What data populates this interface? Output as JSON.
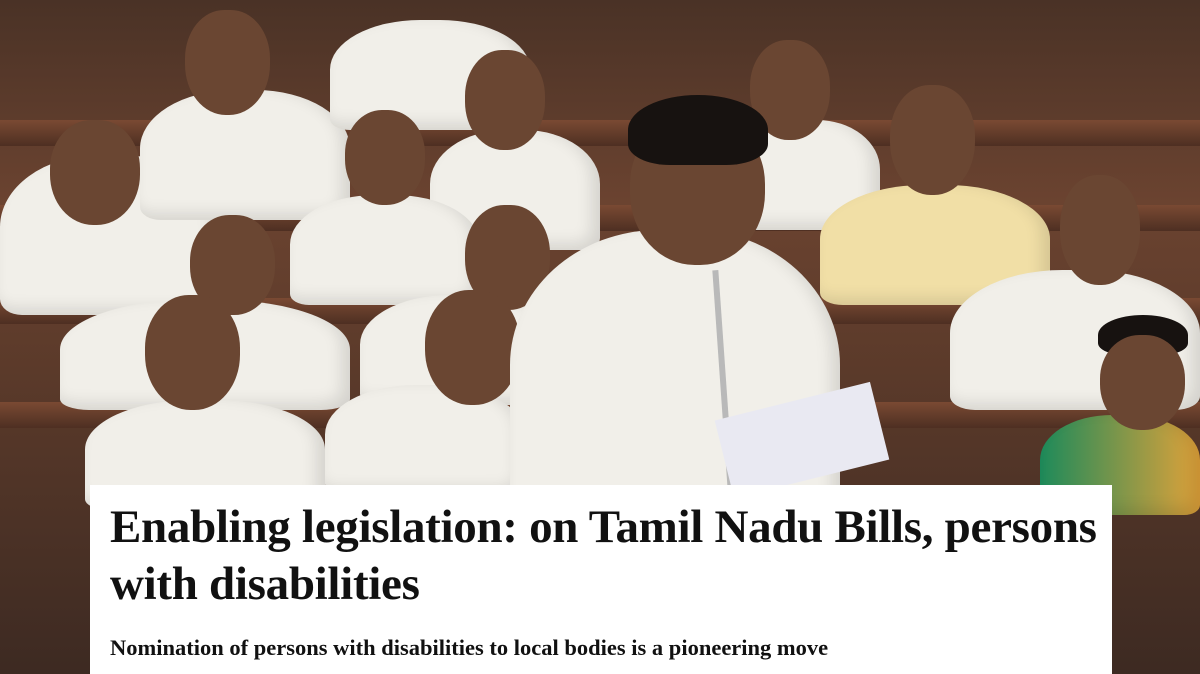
{
  "article": {
    "title": "Enabling legislation: on Tamil Nadu Bills, persons with disabilities",
    "subtitle": "Nomination of persons with disabilities to local bodies is a pioneering move"
  },
  "colors": {
    "card_background": "#ffffff",
    "text": "#111111"
  }
}
